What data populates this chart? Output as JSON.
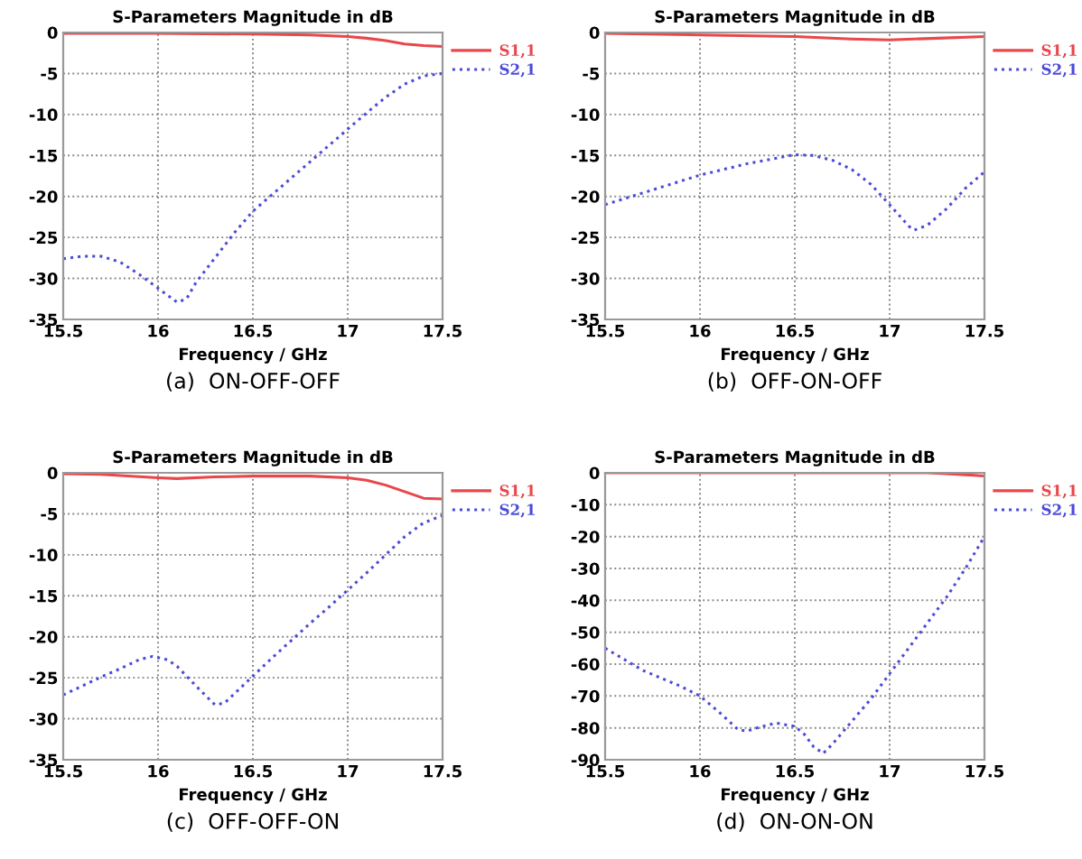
{
  "chart_data": [
    {
      "type": "line",
      "title": "S-Parameters Magnitude in dB",
      "xlabel": "Frequency / GHz",
      "annotations": [
        "(a)  ON-OFF-OFF"
      ],
      "xlim": [
        15.5,
        17.5
      ],
      "xticks": [
        15.5,
        16,
        16.5,
        17,
        17.5
      ],
      "ylim": [
        -35,
        0
      ],
      "yticks": [
        -35,
        -30,
        -25,
        -20,
        -15,
        -10,
        -5,
        0
      ],
      "grid": true,
      "legend": "top right",
      "series": [
        {
          "name": "S1,1",
          "color": "#e8474b",
          "line_style": "solid",
          "x": [
            15.5,
            16.0,
            16.5,
            16.8,
            17.0,
            17.1,
            17.2,
            17.3,
            17.4,
            17.5
          ],
          "values": [
            -0.1,
            -0.1,
            -0.2,
            -0.3,
            -0.5,
            -0.7,
            -1.0,
            -1.4,
            -1.6,
            -1.7
          ]
        },
        {
          "name": "S2,1",
          "color": "#4b4bd8",
          "line_style": "dotted",
          "x": [
            15.5,
            15.6,
            15.7,
            15.8,
            15.9,
            16.0,
            16.1,
            16.15,
            16.2,
            16.3,
            16.4,
            16.5,
            16.6,
            16.7,
            16.8,
            16.9,
            17.0,
            17.1,
            17.2,
            17.3,
            17.4,
            17.5
          ],
          "values": [
            -27.6,
            -27.3,
            -27.3,
            -28,
            -29.5,
            -31.2,
            -32.9,
            -32.5,
            -30.5,
            -27.5,
            -24.5,
            -21.8,
            -19.8,
            -17.8,
            -15.8,
            -13.8,
            -11.8,
            -9.8,
            -7.9,
            -6.3,
            -5.3,
            -5.0
          ]
        }
      ]
    },
    {
      "type": "line",
      "title": "S-Parameters Magnitude in dB",
      "xlabel": "Frequency / GHz",
      "annotations": [
        "(b)  OFF-ON-OFF"
      ],
      "xlim": [
        15.5,
        17.5
      ],
      "xticks": [
        15.5,
        16,
        16.5,
        17,
        17.5
      ],
      "ylim": [
        -35,
        0
      ],
      "yticks": [
        -35,
        -30,
        -25,
        -20,
        -15,
        -10,
        -5,
        0
      ],
      "grid": true,
      "legend": "top right",
      "series": [
        {
          "name": "S1,1",
          "color": "#e8474b",
          "line_style": "solid",
          "x": [
            15.5,
            16.0,
            16.5,
            16.8,
            17.0,
            17.25,
            17.5
          ],
          "values": [
            -0.1,
            -0.3,
            -0.5,
            -0.8,
            -0.9,
            -0.7,
            -0.5
          ]
        },
        {
          "name": "S2,1",
          "color": "#4b4bd8",
          "line_style": "dotted",
          "x": [
            15.5,
            15.75,
            16.0,
            16.25,
            16.5,
            16.6,
            16.7,
            16.8,
            16.9,
            17.0,
            17.1,
            17.13,
            17.2,
            17.3,
            17.4,
            17.5
          ],
          "values": [
            -21,
            -19.2,
            -17.4,
            -16,
            -14.9,
            -15,
            -15.6,
            -16.7,
            -18.5,
            -21,
            -23.6,
            -24.1,
            -23.5,
            -21.5,
            -19,
            -17
          ]
        }
      ]
    },
    {
      "type": "line",
      "title": "S-Parameters Magnitude in dB",
      "xlabel": "Frequency / GHz",
      "annotations": [
        "(c)  OFF-OFF-ON"
      ],
      "xlim": [
        15.5,
        17.5
      ],
      "xticks": [
        15.5,
        16,
        16.5,
        17,
        17.5
      ],
      "ylim": [
        -35,
        0
      ],
      "yticks": [
        -35,
        -30,
        -25,
        -20,
        -15,
        -10,
        -5,
        0
      ],
      "grid": true,
      "legend": "top right",
      "series": [
        {
          "name": "S1,1",
          "color": "#e8474b",
          "line_style": "solid",
          "x": [
            15.5,
            15.7,
            16.0,
            16.1,
            16.3,
            16.5,
            16.8,
            17.0,
            17.1,
            17.2,
            17.3,
            17.4,
            17.5
          ],
          "values": [
            -0.1,
            -0.2,
            -0.6,
            -0.7,
            -0.5,
            -0.4,
            -0.4,
            -0.6,
            -0.9,
            -1.5,
            -2.3,
            -3.1,
            -3.2
          ]
        },
        {
          "name": "S2,1",
          "color": "#4b4bd8",
          "line_style": "dotted",
          "x": [
            15.5,
            15.6,
            15.7,
            15.8,
            15.9,
            15.97,
            16.05,
            16.1,
            16.2,
            16.3,
            16.35,
            16.4,
            16.5,
            16.6,
            16.7,
            16.8,
            16.9,
            17.0,
            17.1,
            17.2,
            17.3,
            17.4,
            17.5
          ],
          "values": [
            -27.1,
            -26,
            -24.9,
            -23.9,
            -22.8,
            -22.4,
            -22.8,
            -23.6,
            -26,
            -28.3,
            -28.1,
            -27,
            -24.8,
            -22.6,
            -20.5,
            -18.4,
            -16.4,
            -14.3,
            -12.2,
            -10.0,
            -7.8,
            -6.1,
            -5.2
          ]
        }
      ]
    },
    {
      "type": "line",
      "title": "S-Parameters Magnitude in dB",
      "xlabel": "Frequency / GHz",
      "annotations": [
        "(d)  ON-ON-ON"
      ],
      "xlim": [
        15.5,
        17.5
      ],
      "xticks": [
        15.5,
        16,
        16.5,
        17,
        17.5
      ],
      "ylim": [
        -90,
        0
      ],
      "yticks": [
        -90,
        -80,
        -70,
        -60,
        -50,
        -40,
        -30,
        -20,
        -10,
        0
      ],
      "grid": true,
      "legend": "top right",
      "series": [
        {
          "name": "S1,1",
          "color": "#e8474b",
          "line_style": "solid",
          "x": [
            15.5,
            16.5,
            17.2,
            17.3,
            17.4,
            17.5
          ],
          "values": [
            0,
            0,
            0,
            -0.3,
            -0.6,
            -1.0
          ]
        },
        {
          "name": "S2,1",
          "color": "#4b4bd8",
          "line_style": "dotted",
          "x": [
            15.5,
            15.7,
            15.9,
            16.0,
            16.1,
            16.2,
            16.25,
            16.3,
            16.4,
            16.5,
            16.55,
            16.6,
            16.65,
            16.7,
            16.8,
            16.9,
            17.0,
            17.1,
            17.2,
            17.3,
            17.4,
            17.5
          ],
          "values": [
            -55,
            -62,
            -67,
            -70,
            -75,
            -80.5,
            -81,
            -80,
            -78.5,
            -79.5,
            -82,
            -86,
            -88,
            -85,
            -78,
            -71,
            -63,
            -55,
            -47,
            -39,
            -30,
            -20
          ]
        }
      ]
    }
  ]
}
